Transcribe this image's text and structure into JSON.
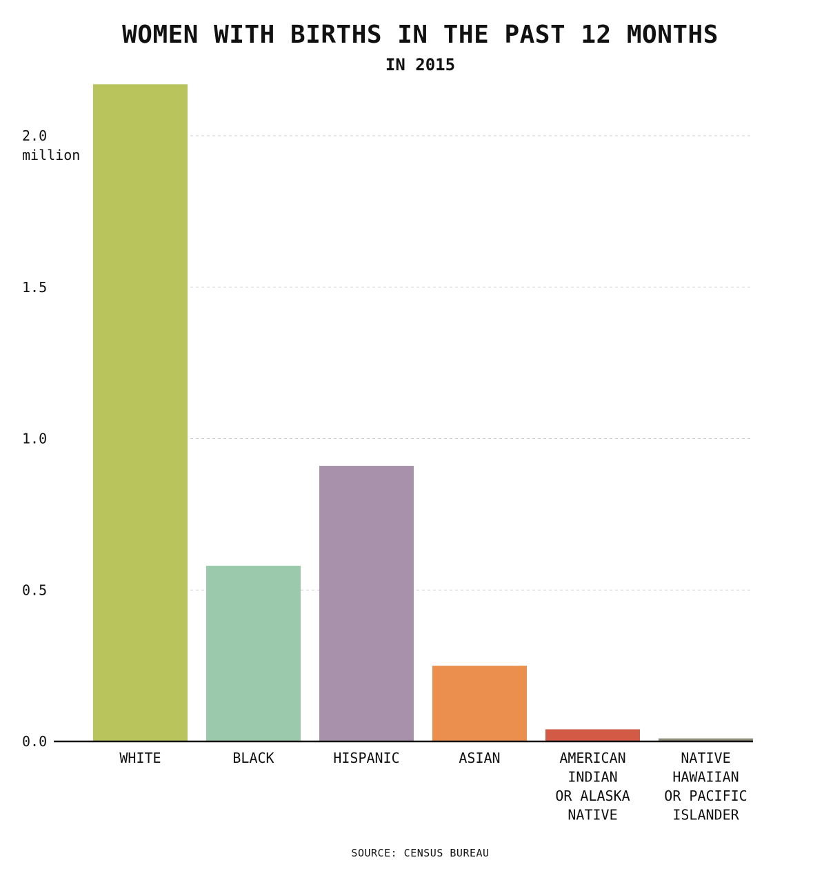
{
  "chart_data": {
    "type": "bar",
    "title": "WOMEN WITH BIRTHS IN THE PAST 12 MONTHS",
    "subtitle": "IN 2015",
    "source": "SOURCE: CENSUS BUREAU",
    "categories": [
      [
        "WHITE"
      ],
      [
        "BLACK"
      ],
      [
        "HISPANIC"
      ],
      [
        "ASIAN"
      ],
      [
        "AMERICAN",
        "INDIAN",
        "OR ALASKA",
        "NATIVE"
      ],
      [
        "NATIVE",
        "HAWAIIAN",
        "OR PACIFIC",
        "ISLANDER"
      ]
    ],
    "values": [
      2.17,
      0.58,
      0.91,
      0.25,
      0.04,
      0.01
    ],
    "colors": [
      "#b9c45c",
      "#9acaab",
      "#a891ab",
      "#ea8f4d",
      "#d35a45",
      "#8c8c78"
    ],
    "unit_label": "million",
    "ylim": [
      0,
      2.2
    ],
    "yticks": [
      {
        "value": 0.0,
        "label": "0.0"
      },
      {
        "value": 0.5,
        "label": "0.5"
      },
      {
        "value": 1.0,
        "label": "1.0"
      },
      {
        "value": 1.5,
        "label": "1.5"
      },
      {
        "value": 2.0,
        "label": "2.0"
      }
    ],
    "grid": true,
    "xlabel": "",
    "ylabel": ""
  }
}
